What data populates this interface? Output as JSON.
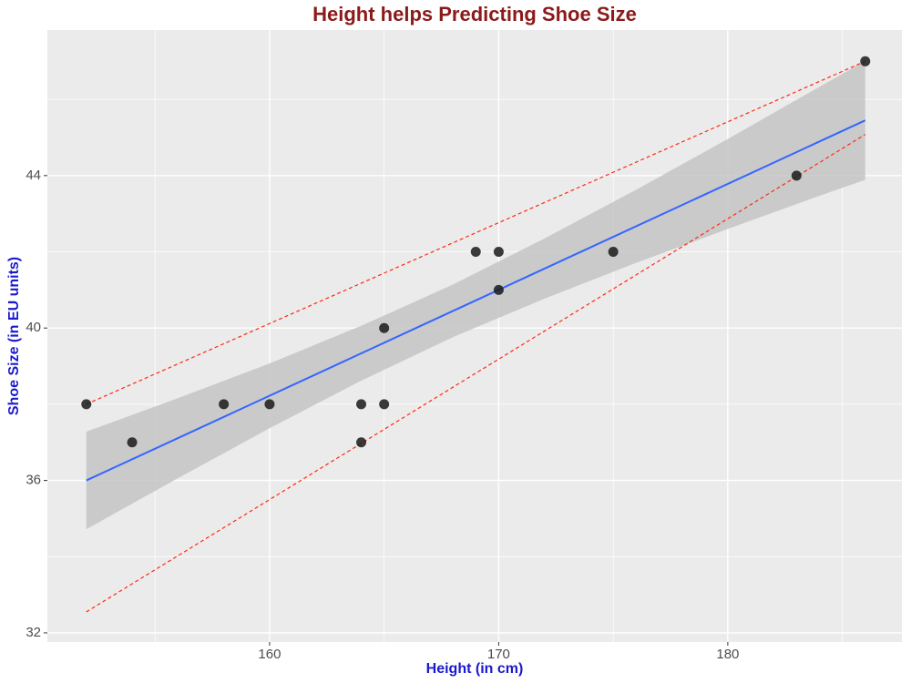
{
  "chart_data": {
    "type": "scatter",
    "title": "Height helps Predicting Shoe Size",
    "x_label": "Height (in cm)",
    "y_label": "Shoe Size (in EU units)",
    "x": [
      152,
      154,
      158,
      160,
      164,
      164,
      165,
      165,
      169,
      170,
      170,
      175,
      183,
      186
    ],
    "y": [
      38,
      37,
      38,
      38,
      38,
      37,
      38,
      40,
      42,
      42,
      41,
      42,
      44,
      47
    ],
    "color": "#1a1a1a",
    "xlim": [
      150.3,
      187.6
    ],
    "ylim": [
      31.76,
      47.82
    ],
    "xticks": [
      160,
      170,
      180
    ],
    "yticks": [
      32,
      36,
      40,
      44
    ],
    "grid": true,
    "minor_grid": true,
    "fit": {
      "x": [
        152,
        186
      ],
      "y": [
        36.0,
        45.45
      ],
      "color": "#3366ff"
    },
    "band": {
      "x": [
        152,
        156,
        160,
        164,
        168,
        172,
        176,
        180,
        184,
        186
      ],
      "lower": [
        34.72,
        36.06,
        37.37,
        38.62,
        39.76,
        40.77,
        41.71,
        42.6,
        43.47,
        43.89
      ],
      "upper": [
        37.28,
        38.16,
        39.07,
        40.06,
        41.14,
        42.35,
        43.63,
        44.96,
        46.33,
        47.01
      ],
      "color": "#c4c4c4"
    },
    "guides": [
      {
        "x": [
          152,
          186
        ],
        "y": [
          38,
          47
        ],
        "color": "#ff2a12"
      },
      {
        "x": [
          152,
          186
        ],
        "y": [
          32.55,
          45.08
        ],
        "color": "#ff2a12"
      }
    ]
  }
}
